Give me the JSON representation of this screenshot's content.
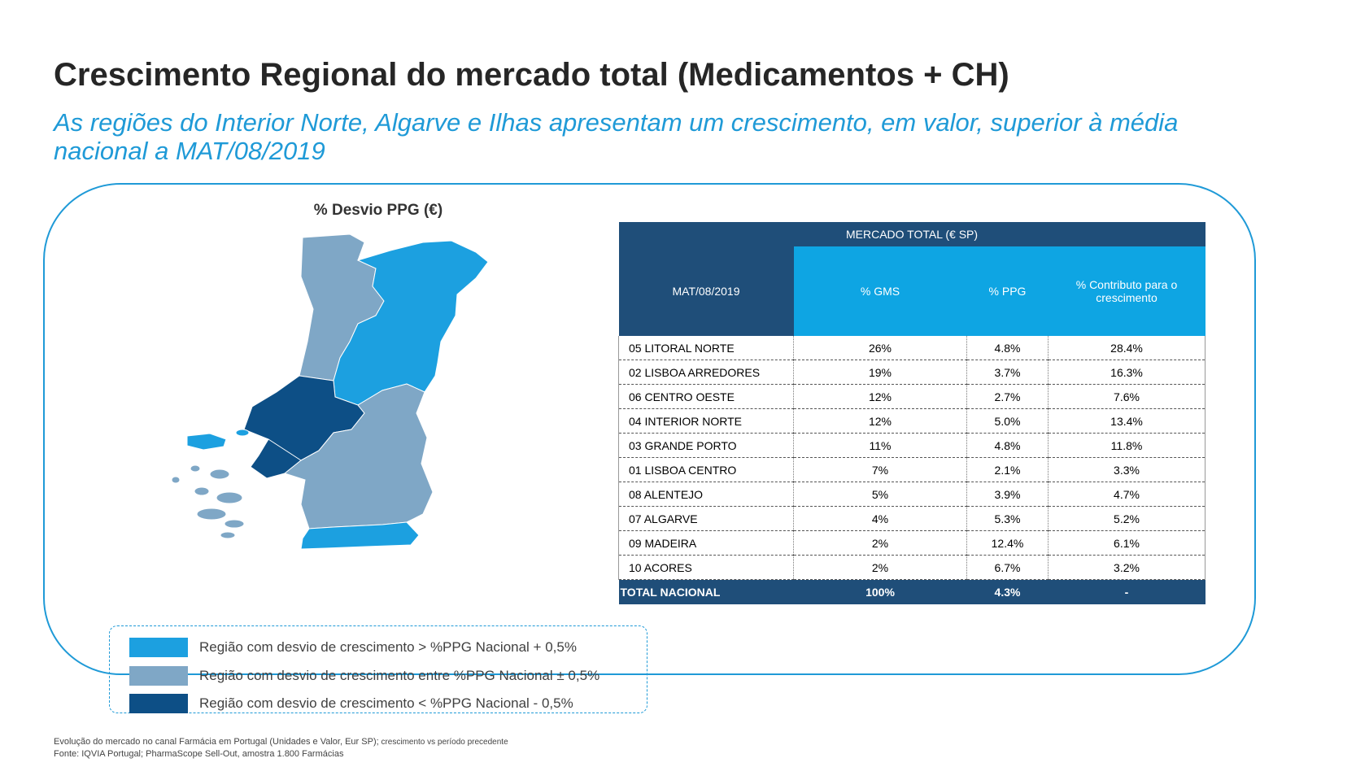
{
  "title": "Crescimento Regional do mercado total (Medicamentos + CH)",
  "subtitle_line1": "As regiões do Interior Norte, Algarve e  Ilhas apresentam um crescimento, em valor, superior à média",
  "subtitle_line2": "nacional a MAT/08/2019",
  "map": {
    "title": "% Desvio PPG (€)",
    "colors": {
      "above": "#1ca0e0",
      "between": "#7fa7c6",
      "below": "#0d4f86"
    }
  },
  "table": {
    "top_header": "MERCADO TOTAL (€ SP)",
    "col_headers": [
      "MAT/08/2019",
      "% GMS",
      "% PPG",
      "% Contributo para o crescimento"
    ],
    "rows": [
      [
        "05 LITORAL NORTE",
        "26%",
        "4.8%",
        "28.4%"
      ],
      [
        "02 LISBOA ARREDORES",
        "19%",
        "3.7%",
        "16.3%"
      ],
      [
        "06 CENTRO OESTE",
        "12%",
        "2.7%",
        "7.6%"
      ],
      [
        "04 INTERIOR NORTE",
        "12%",
        "5.0%",
        "13.4%"
      ],
      [
        "03 GRANDE PORTO",
        "11%",
        "4.8%",
        "11.8%"
      ],
      [
        "01 LISBOA CENTRO",
        "7%",
        "2.1%",
        "3.3%"
      ],
      [
        "08 ALENTEJO",
        "5%",
        "3.9%",
        "4.7%"
      ],
      [
        "07 ALGARVE",
        "4%",
        "5.3%",
        "5.2%"
      ],
      [
        "09 MADEIRA",
        "2%",
        "12.4%",
        "6.1%"
      ],
      [
        "10 ACORES",
        "2%",
        "6.7%",
        "3.2%"
      ]
    ],
    "total": [
      "TOTAL NACIONAL",
      "100%",
      "4.3%",
      "-"
    ]
  },
  "legend": [
    {
      "label": "Região com desvio de crescimento  > %PPG Nacional + 0,5%",
      "color": "#1ca0e0"
    },
    {
      "label": "Região com desvio de crescimento entre %PPG Nacional ± 0,5%",
      "color": "#7fa7c6"
    },
    {
      "label": "Região com desvio de crescimento < %PPG Nacional - 0,5%",
      "color": "#0d4f86"
    }
  ],
  "footnote_line1_main": "Evolução do mercado no canal Farmácia em Portugal (Unidades e Valor, Eur SP);",
  "footnote_line1_small": " crescimento vs período precedente",
  "footnote_line2": "Fonte: IQVIA Portugal; PharmaScope Sell-Out, amostra 1.800 Farmácias",
  "chart_data": {
    "type": "table",
    "title": "MERCADO TOTAL (€ SP)",
    "columns": [
      "MAT/08/2019",
      "% GMS",
      "% PPG",
      "% Contributo para o crescimento"
    ],
    "categories": [
      "05 LITORAL NORTE",
      "02 LISBOA ARREDORES",
      "06 CENTRO OESTE",
      "04 INTERIOR NORTE",
      "03 GRANDE PORTO",
      "01 LISBOA CENTRO",
      "08 ALENTEJO",
      "07 ALGARVE",
      "09 MADEIRA",
      "10 ACORES"
    ],
    "series": [
      {
        "name": "% GMS",
        "values": [
          26,
          19,
          12,
          12,
          11,
          7,
          5,
          4,
          2,
          2
        ]
      },
      {
        "name": "% PPG",
        "values": [
          4.8,
          3.7,
          2.7,
          5.0,
          4.8,
          2.1,
          3.9,
          5.3,
          12.4,
          6.7
        ]
      },
      {
        "name": "% Contributo para o crescimento",
        "values": [
          28.4,
          16.3,
          7.6,
          13.4,
          11.8,
          3.3,
          4.7,
          5.2,
          6.1,
          3.2
        ]
      }
    ],
    "total": {
      "label": "TOTAL NACIONAL",
      "gms": 100,
      "ppg": 4.3,
      "contributo": "-"
    }
  }
}
